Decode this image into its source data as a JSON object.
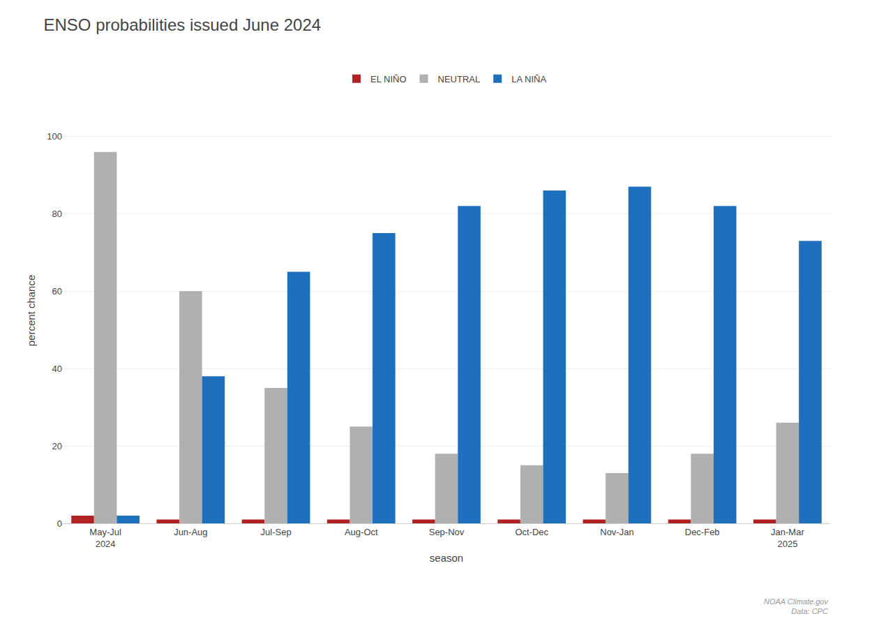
{
  "chart_data": {
    "type": "bar",
    "title": "ENSO probabilities issued June 2024",
    "categories": [
      "May-Jul\n2024",
      "Jun-Aug",
      "Jul-Sep",
      "Aug-Oct",
      "Sep-Nov",
      "Oct-Dec",
      "Nov-Jan",
      "Dec-Feb",
      "Jan-Mar\n2025"
    ],
    "series": [
      {
        "name": "EL NIÑO",
        "color": "#b22222",
        "values": [
          2,
          1,
          1,
          1,
          1,
          1,
          1,
          1,
          1
        ]
      },
      {
        "name": "NEUTRAL",
        "color": "#b0b0b0",
        "values": [
          96,
          60,
          35,
          25,
          18,
          15,
          13,
          18,
          26
        ]
      },
      {
        "name": "LA NIÑA",
        "color": "#1e6fbe",
        "values": [
          2,
          38,
          65,
          75,
          82,
          86,
          87,
          82,
          73
        ]
      }
    ],
    "xlabel": "season",
    "ylabel": "percent chance",
    "ylim": [
      0,
      110
    ],
    "yticks": [
      0,
      20,
      40,
      60,
      80,
      100
    ],
    "grid": true,
    "legend": "top",
    "annotations": [
      "NOAA Climate.gov\nData: CPC"
    ]
  }
}
